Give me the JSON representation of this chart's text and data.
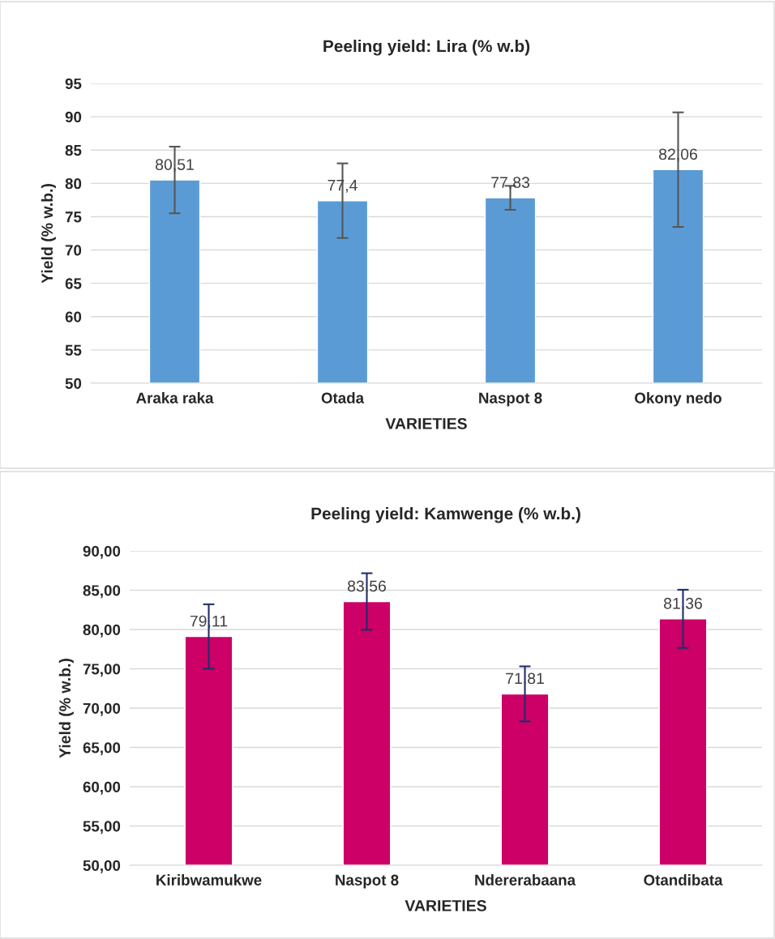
{
  "chart_data": [
    {
      "type": "bar",
      "title": "Peeling yield: Lira (% w.b)",
      "xlabel": "VARIETIES",
      "ylabel": "Yield (% w.b.)",
      "categories": [
        "Araka raka",
        "Otada",
        "Naspot 8",
        "Okony nedo"
      ],
      "values": [
        80.51,
        77.4,
        77.83,
        82.06
      ],
      "color": "#5b9bd5",
      "errors": [
        5.0,
        5.6,
        1.8,
        8.6
      ],
      "value_labels": [
        "80,51",
        "77,4",
        "77,83",
        "82,06"
      ],
      "ylim": [
        50,
        95
      ],
      "yticks": [
        50,
        55,
        60,
        65,
        70,
        75,
        80,
        85,
        90,
        95
      ],
      "grid": "y"
    },
    {
      "type": "bar",
      "title": "Peeling yield: Kamwenge (% w.b.)",
      "xlabel": "VARIETIES",
      "ylabel": "Yield (% w.b.)",
      "categories": [
        "Kiribwamukwe",
        "Naspot 8",
        "Ndererabaana",
        "Otandibata"
      ],
      "values": [
        79.11,
        83.56,
        71.81,
        81.36
      ],
      "color": "#cc0066",
      "errors": [
        4.1,
        3.6,
        3.5,
        3.7
      ],
      "value_labels": [
        "79,11",
        "83,56",
        "71,81",
        "81,36"
      ],
      "ylim": [
        50,
        90
      ],
      "yticks": [
        {
          "value": 50,
          "label": "50,00"
        },
        {
          "value": 55,
          "label": "55,00"
        },
        {
          "value": 60,
          "label": "60,00"
        },
        {
          "value": 65,
          "label": "65,00"
        },
        {
          "value": 70,
          "label": "70,00"
        },
        {
          "value": 75,
          "label": "75,00"
        },
        {
          "value": 80,
          "label": "80,00"
        },
        {
          "value": 85,
          "label": "85,00"
        },
        {
          "value": 90,
          "label": "90,00"
        }
      ],
      "grid": "y"
    }
  ]
}
